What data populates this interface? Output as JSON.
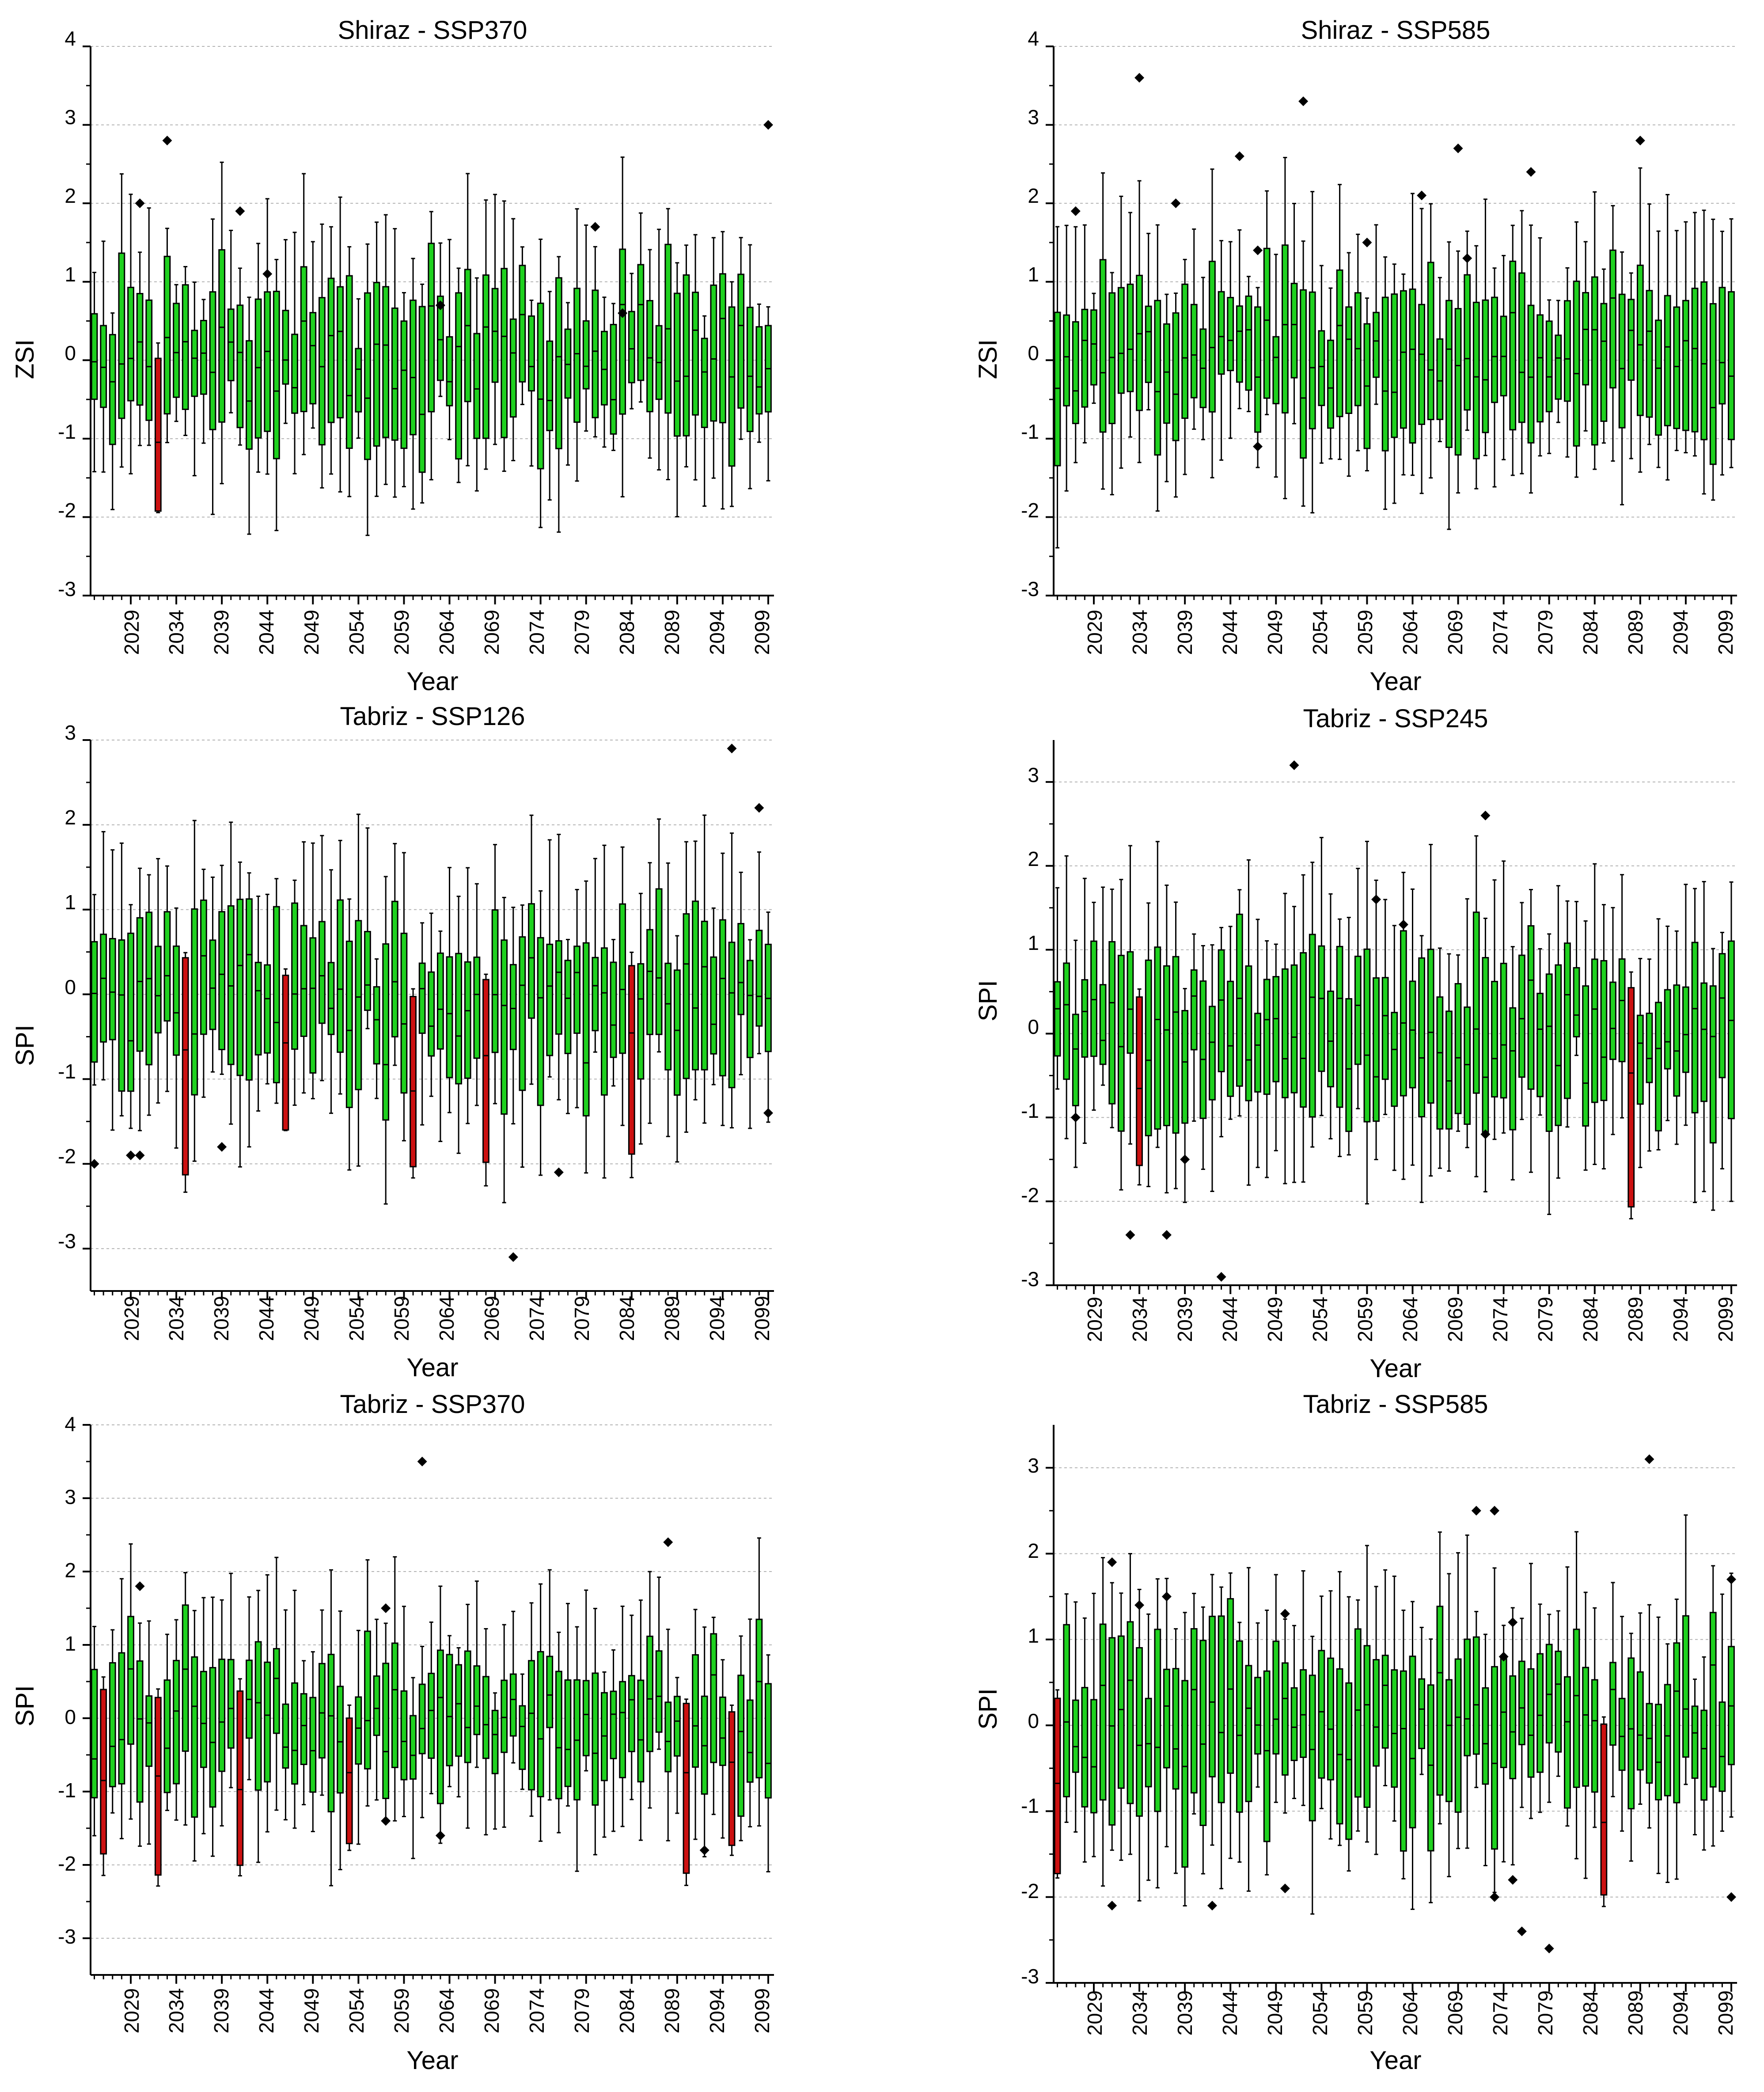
{
  "colors": {
    "normal_box": "#1fd11f",
    "drought_box": "#cc1111",
    "outlier": "#000000",
    "grid": "#b4b4b4",
    "axis": "#000000"
  },
  "chart_data": [
    {
      "type": "boxplot",
      "title": "Shiraz - SSP370",
      "xlabel": "Year",
      "ylabel": "ZSI",
      "ylim": [
        -3,
        4
      ],
      "yticks": [
        -3,
        -2,
        -1,
        0,
        1,
        2,
        3,
        4
      ],
      "grid": "horizontal dotted",
      "year_range": [
        2025,
        2099
      ],
      "xtick_labels": [
        "2029",
        "2034",
        "2039",
        "2044",
        "2049",
        "2054",
        "2059",
        "2064",
        "2069",
        "2074",
        "2079",
        "2084",
        "2089",
        "2094",
        "2099"
      ],
      "drought_years": [
        2032
      ],
      "outliers": [
        [
          2030,
          2.0
        ],
        [
          2033,
          2.8
        ],
        [
          2041,
          1.9
        ],
        [
          2044,
          1.1
        ],
        [
          2063,
          0.7
        ],
        [
          2080,
          1.7
        ],
        [
          2083,
          0.6
        ],
        [
          2099,
          3.0
        ]
      ]
    },
    {
      "type": "boxplot",
      "title": "Shiraz - SSP585",
      "xlabel": "Year",
      "ylabel": "ZSI",
      "ylim": [
        -3,
        4
      ],
      "yticks": [
        -3,
        -2,
        -1,
        0,
        1,
        2,
        3,
        4
      ],
      "grid": "horizontal dotted",
      "year_range": [
        2025,
        2099
      ],
      "xtick_labels": [
        "2029",
        "2034",
        "2039",
        "2044",
        "2049",
        "2054",
        "2059",
        "2064",
        "2069",
        "2074",
        "2079",
        "2084",
        "2089",
        "2094",
        "2099"
      ],
      "drought_years": [],
      "outliers": [
        [
          2027,
          1.9
        ],
        [
          2034,
          3.6
        ],
        [
          2038,
          2.0
        ],
        [
          2045,
          2.6
        ],
        [
          2047,
          1.4
        ],
        [
          2047,
          -1.1
        ],
        [
          2052,
          3.3
        ],
        [
          2059,
          1.5
        ],
        [
          2065,
          2.1
        ],
        [
          2069,
          2.7
        ],
        [
          2070,
          1.3
        ],
        [
          2077,
          2.4
        ],
        [
          2089,
          2.8
        ]
      ]
    },
    {
      "type": "boxplot",
      "title": "Tabriz - SSP126",
      "xlabel": "Year",
      "ylabel": "SPI",
      "ylim": [
        -3.5,
        3
      ],
      "yticks": [
        -3,
        -2,
        -1,
        0,
        1,
        2,
        3
      ],
      "grid": "horizontal dotted",
      "year_range": [
        2025,
        2099
      ],
      "xtick_labels": [
        "2029",
        "2034",
        "2039",
        "2044",
        "2049",
        "2054",
        "2059",
        "2064",
        "2069",
        "2074",
        "2079",
        "2084",
        "2089",
        "2094",
        "2099"
      ],
      "drought_years": [
        2035,
        2046,
        2060,
        2068,
        2084
      ],
      "outliers": [
        [
          2025,
          -2.0
        ],
        [
          2029,
          -1.9
        ],
        [
          2030,
          -1.9
        ],
        [
          2039,
          -1.8
        ],
        [
          2071,
          -3.1
        ],
        [
          2076,
          -2.1
        ],
        [
          2095,
          2.9
        ],
        [
          2098,
          2.2
        ],
        [
          2099,
          -1.4
        ]
      ]
    },
    {
      "type": "boxplot",
      "title": "Tabriz - SSP245",
      "xlabel": "Year",
      "ylabel": "SPI",
      "ylim": [
        -3,
        3.5
      ],
      "yticks": [
        -3,
        -2,
        -1,
        0,
        1,
        2,
        3
      ],
      "grid": "horizontal dotted",
      "year_range": [
        2025,
        2099
      ],
      "xtick_labels": [
        "2029",
        "2034",
        "2039",
        "2044",
        "2049",
        "2054",
        "2059",
        "2064",
        "2069",
        "2074",
        "2079",
        "2084",
        "2089",
        "2094",
        "2099"
      ],
      "drought_years": [
        2034,
        2088
      ],
      "outliers": [
        [
          2027,
          -1.0
        ],
        [
          2033,
          -2.4
        ],
        [
          2037,
          -2.4
        ],
        [
          2039,
          -1.5
        ],
        [
          2043,
          -2.9
        ],
        [
          2051,
          3.2
        ],
        [
          2060,
          1.6
        ],
        [
          2063,
          1.3
        ],
        [
          2072,
          2.6
        ],
        [
          2072,
          -1.2
        ]
      ]
    },
    {
      "type": "boxplot",
      "title": "Tabriz - SSP370",
      "xlabel": "Year",
      "ylabel": "SPI",
      "ylim": [
        -3.5,
        4
      ],
      "yticks": [
        -3,
        -2,
        -1,
        0,
        1,
        2,
        3,
        4
      ],
      "grid": "horizontal dotted",
      "year_range": [
        2025,
        2099
      ],
      "xtick_labels": [
        "2029",
        "2034",
        "2039",
        "2044",
        "2049",
        "2054",
        "2059",
        "2064",
        "2069",
        "2074",
        "2079",
        "2084",
        "2089",
        "2094",
        "2099"
      ],
      "drought_years": [
        2026,
        2032,
        2041,
        2053,
        2090,
        2095
      ],
      "outliers": [
        [
          2030,
          1.8
        ],
        [
          2057,
          1.5
        ],
        [
          2057,
          -1.4
        ],
        [
          2061,
          3.5
        ],
        [
          2063,
          -1.6
        ],
        [
          2088,
          2.4
        ],
        [
          2092,
          -1.8
        ]
      ]
    },
    {
      "type": "boxplot",
      "title": "Tabriz - SSP585",
      "xlabel": "Year",
      "ylabel": "SPI",
      "ylim": [
        -3,
        3.5
      ],
      "yticks": [
        -3,
        -2,
        -1,
        0,
        1,
        2,
        3
      ],
      "grid": "horizontal dotted",
      "year_range": [
        2025,
        2099
      ],
      "xtick_labels": [
        "2029",
        "2034",
        "2039",
        "2044",
        "2049",
        "2054",
        "2059",
        "2064",
        "2069",
        "2074",
        "2079",
        "2084",
        "2089",
        "2094",
        "2099"
      ],
      "drought_years": [
        2025,
        2085
      ],
      "outliers": [
        [
          2031,
          1.9
        ],
        [
          2031,
          -2.1
        ],
        [
          2034,
          1.4
        ],
        [
          2037,
          1.5
        ],
        [
          2042,
          -2.1
        ],
        [
          2050,
          1.3
        ],
        [
          2050,
          -1.9
        ],
        [
          2071,
          2.5
        ],
        [
          2073,
          2.5
        ],
        [
          2073,
          -2.0
        ],
        [
          2074,
          0.8
        ],
        [
          2075,
          1.2
        ],
        [
          2075,
          -1.8
        ],
        [
          2076,
          -2.4
        ],
        [
          2079,
          -2.6
        ],
        [
          2090,
          3.1
        ],
        [
          2099,
          1.7
        ],
        [
          2099,
          -2.0
        ]
      ]
    }
  ]
}
